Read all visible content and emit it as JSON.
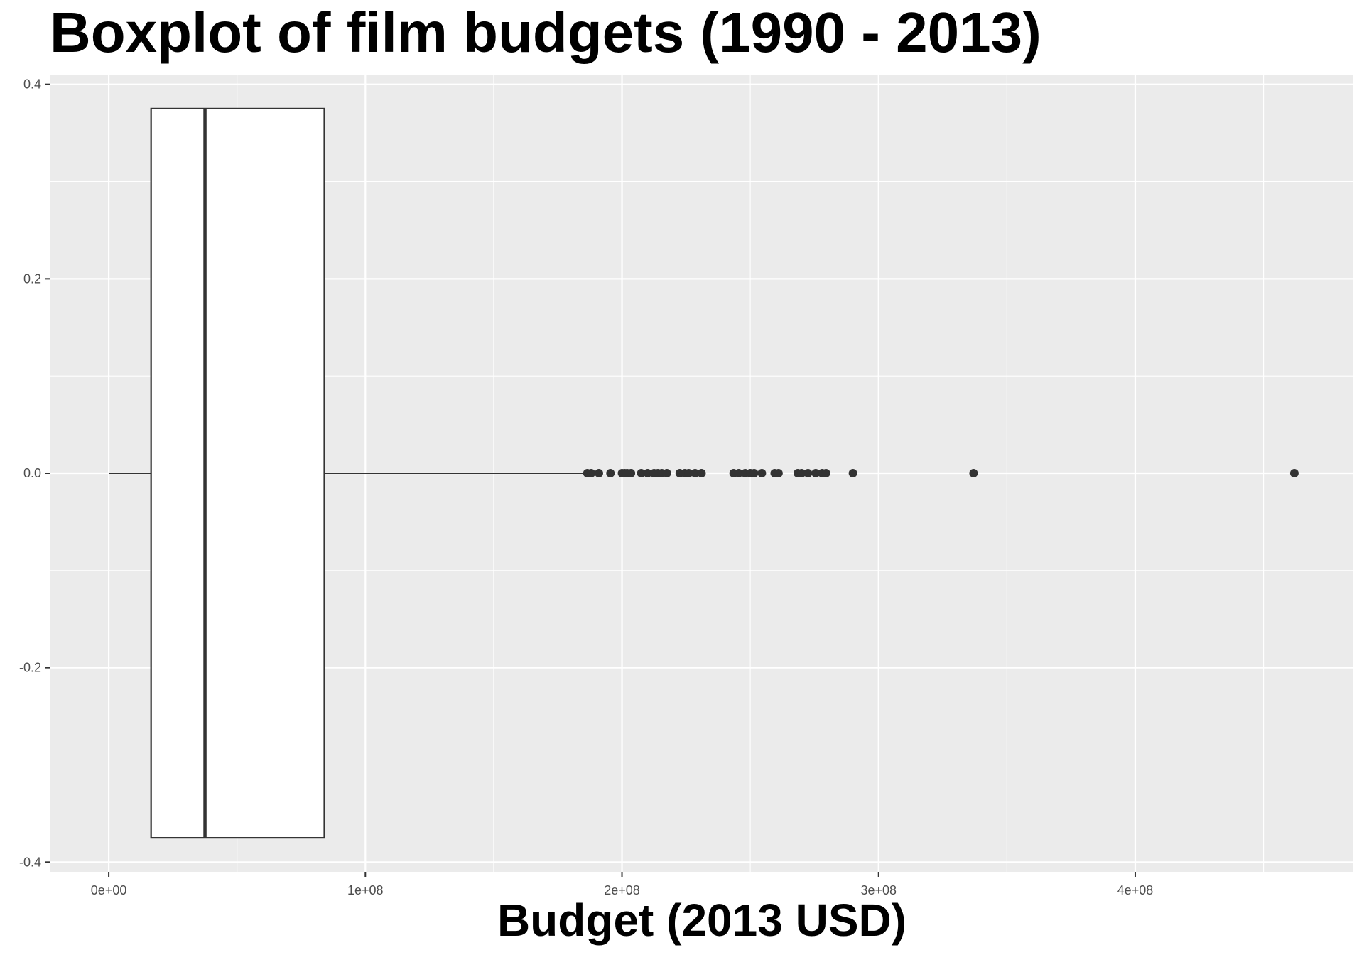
{
  "chart_data": {
    "type": "boxplot",
    "title": "Boxplot of film budgets (1990 - 2013)",
    "xlabel": "Budget (2013 USD)",
    "ylabel": "",
    "orientation": "horizontal",
    "xlim": [
      -23000000,
      485000000
    ],
    "ylim": [
      -0.41,
      0.41
    ],
    "x_ticks": [
      0,
      100000000,
      200000000,
      300000000,
      400000000
    ],
    "x_tick_labels": [
      "0e+00",
      "1e+08",
      "2e+08",
      "3e+08",
      "4e+08"
    ],
    "y_ticks": [
      -0.4,
      -0.2,
      0.0,
      0.2,
      0.4
    ],
    "y_tick_labels": [
      "-0.4",
      "-0.2",
      "0.0",
      "0.2",
      "0.4"
    ],
    "box": {
      "whisker_low": 0,
      "q1": 16500000,
      "median": 37500000,
      "q3": 84000000,
      "whisker_high": 185000000,
      "y_low": -0.375,
      "y_high": 0.375
    },
    "outliers": [
      186500000,
      188000000,
      191000000,
      195500000,
      200000000,
      201000000,
      202000000,
      203500000,
      207500000,
      210000000,
      212500000,
      214000000,
      215500000,
      217500000,
      222500000,
      224500000,
      226000000,
      228500000,
      231000000,
      243500000,
      245500000,
      248000000,
      250000000,
      251500000,
      254500000,
      259500000,
      261000000,
      268500000,
      270000000,
      272500000,
      275500000,
      278000000,
      279500000,
      290000000,
      337000000,
      462000000
    ],
    "grid": true,
    "legend": "none",
    "colors": {
      "panel": "#ebebeb",
      "grid": "#ffffff",
      "box_fill": "#ffffff",
      "box_line": "#333333",
      "point": "#333333",
      "tick_text": "#4d4d4d"
    }
  }
}
